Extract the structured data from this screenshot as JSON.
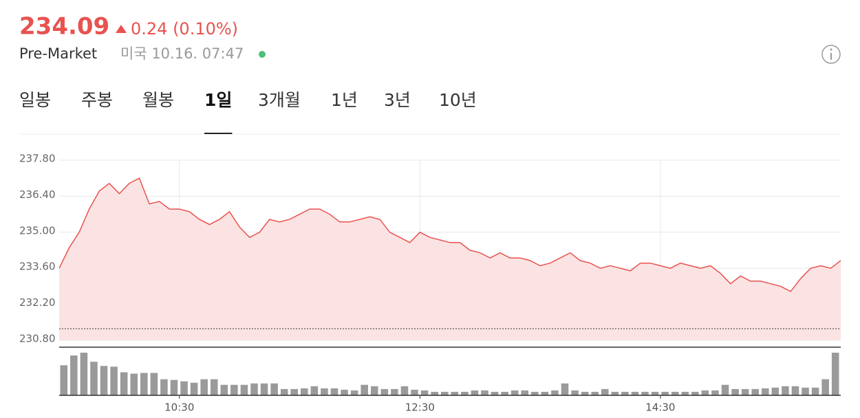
{
  "header": {
    "price": "234.09",
    "change": "0.24 (0.10%)",
    "session": "Pre-Market",
    "timestamp": "미국 10.16. 07:47"
  },
  "tabs": {
    "items": [
      "일봉",
      "주봉",
      "월봉",
      "1일",
      "3개월",
      "1년",
      "3년",
      "10년"
    ],
    "active": 3
  },
  "chart_data": {
    "type": "line",
    "color": "#e8524f",
    "fill": "#fbe3e3",
    "x": [
      "09:30",
      "09:35",
      "09:40",
      "09:45",
      "09:50",
      "09:55",
      "10:00",
      "10:05",
      "10:10",
      "10:15",
      "10:20",
      "10:25",
      "10:30",
      "10:35",
      "10:40",
      "10:45",
      "10:50",
      "10:55",
      "11:00",
      "11:05",
      "11:10",
      "11:15",
      "11:20",
      "11:25",
      "11:30",
      "11:35",
      "11:40",
      "11:45",
      "11:50",
      "11:55",
      "12:00",
      "12:05",
      "12:10",
      "12:15",
      "12:20",
      "12:25",
      "12:30",
      "12:35",
      "12:40",
      "12:45",
      "12:50",
      "12:55",
      "13:00",
      "13:05",
      "13:10",
      "13:15",
      "13:20",
      "13:25",
      "13:30",
      "13:35",
      "13:40",
      "13:45",
      "13:50",
      "13:55",
      "14:00",
      "14:05",
      "14:10",
      "14:15",
      "14:20",
      "14:25",
      "14:30",
      "14:35",
      "14:40",
      "14:45",
      "14:50",
      "14:55",
      "15:00",
      "15:05",
      "15:10",
      "15:15",
      "15:20",
      "15:25",
      "15:30",
      "15:35",
      "15:40",
      "15:45",
      "15:50",
      "15:55",
      "16:00"
    ],
    "values": [
      233.6,
      234.4,
      235.0,
      235.9,
      236.6,
      236.9,
      236.5,
      236.9,
      237.1,
      236.1,
      236.2,
      235.9,
      235.9,
      235.8,
      235.5,
      235.3,
      235.5,
      235.8,
      235.2,
      234.8,
      235.0,
      235.5,
      235.4,
      235.5,
      235.7,
      235.9,
      235.9,
      235.7,
      235.4,
      235.4,
      235.5,
      235.6,
      235.5,
      235.0,
      234.8,
      234.6,
      235.0,
      234.8,
      234.7,
      234.6,
      234.6,
      234.3,
      234.2,
      234.0,
      234.2,
      234.0,
      234.0,
      233.9,
      233.7,
      233.8,
      234.0,
      234.2,
      233.9,
      233.8,
      233.6,
      233.7,
      233.6,
      233.5,
      233.8,
      233.8,
      233.7,
      233.6,
      233.8,
      233.7,
      233.6,
      233.7,
      233.4,
      233.0,
      233.3,
      233.1,
      233.1,
      233.0,
      232.9,
      232.7,
      233.2,
      233.6,
      233.7,
      233.6,
      233.9
    ],
    "reference_line": 231.25,
    "ylim": [
      230.8,
      237.8
    ],
    "yticks": [
      {
        "value": 237.8,
        "label": "237.80"
      },
      {
        "value": 236.4,
        "label": "236.40"
      },
      {
        "value": 235.0,
        "label": "235.00"
      },
      {
        "value": 233.6,
        "label": "233.60"
      },
      {
        "value": 232.2,
        "label": "232.20"
      },
      {
        "value": 230.8,
        "label": "230.80"
      }
    ],
    "xticks": [
      "10:30",
      "12:30",
      "14:30"
    ],
    "grid": true,
    "volume": {
      "color": "#9a9a9a",
      "x": [
        "09:30",
        "09:35",
        "09:40",
        "09:45",
        "09:50",
        "09:55",
        "10:00",
        "10:05",
        "10:10",
        "10:15",
        "10:20",
        "10:25",
        "10:30",
        "10:35",
        "10:40",
        "10:45",
        "10:50",
        "10:55",
        "11:00",
        "11:05",
        "11:10",
        "11:15",
        "11:20",
        "11:25",
        "11:30",
        "11:35",
        "11:40",
        "11:45",
        "11:50",
        "11:55",
        "12:00",
        "12:05",
        "12:10",
        "12:15",
        "12:20",
        "12:25",
        "12:30",
        "12:35",
        "12:40",
        "12:45",
        "12:50",
        "12:55",
        "13:00",
        "13:05",
        "13:10",
        "13:15",
        "13:20",
        "13:25",
        "13:30",
        "13:35",
        "13:40",
        "13:45",
        "13:50",
        "13:55",
        "14:00",
        "14:05",
        "14:10",
        "14:15",
        "14:20",
        "14:25",
        "14:30",
        "14:35",
        "14:40",
        "14:45",
        "14:50",
        "14:55",
        "15:00",
        "15:05",
        "15:10",
        "15:15",
        "15:20",
        "15:25",
        "15:30",
        "15:35",
        "15:40",
        "15:45",
        "15:50",
        "15:55"
      ],
      "values": [
        43,
        57,
        61,
        48,
        42,
        41,
        33,
        31,
        32,
        32,
        23,
        22,
        20,
        18,
        23,
        23,
        15,
        15,
        15,
        17,
        17,
        17,
        9,
        9,
        10,
        13,
        10,
        10,
        8,
        7,
        15,
        13,
        9,
        9,
        13,
        8,
        7,
        5,
        5,
        5,
        5,
        7,
        7,
        5,
        5,
        7,
        7,
        5,
        5,
        7,
        17,
        7,
        5,
        5,
        9,
        5,
        5,
        5,
        5,
        5,
        5,
        5,
        5,
        5,
        7,
        7,
        15,
        9,
        9,
        9,
        10,
        11,
        13,
        13,
        11,
        11,
        23,
        61
      ]
    }
  }
}
